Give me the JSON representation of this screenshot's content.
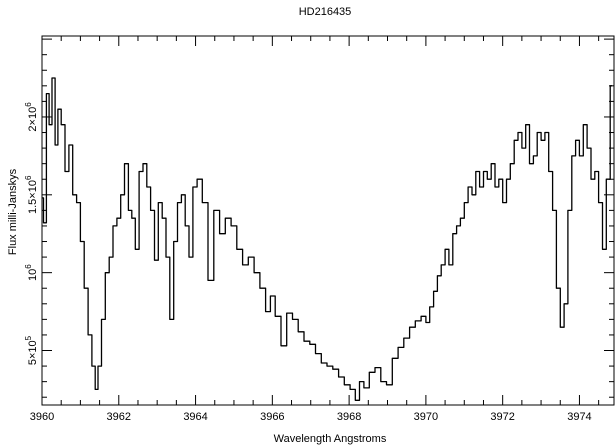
{
  "chart_data": {
    "type": "line",
    "title": "HD216435",
    "xlabel": "Wavelength  Angstroms",
    "ylabel": "Flux  milli-Janskys",
    "xlim": [
      3960,
      3974.9
    ],
    "ylim": [
      150000,
      2520000
    ],
    "grid": false,
    "legend": "none",
    "x_ticks": [
      {
        "value": 3960,
        "label": "3960"
      },
      {
        "value": 3962,
        "label": "3962"
      },
      {
        "value": 3964,
        "label": "3964"
      },
      {
        "value": 3966,
        "label": "3966"
      },
      {
        "value": 3968,
        "label": "3968"
      },
      {
        "value": 3970,
        "label": "3970"
      },
      {
        "value": 3972,
        "label": "3972"
      },
      {
        "value": 3974,
        "label": "3974"
      }
    ],
    "y_ticks": [
      {
        "value": 500000,
        "mantissa": "5×10",
        "exponent": "5"
      },
      {
        "value": 1000000,
        "mantissa": "10",
        "exponent": "6"
      },
      {
        "value": 1500000,
        "mantissa": "1.5×10",
        "exponent": "6"
      },
      {
        "value": 2000000,
        "mantissa": "2×10",
        "exponent": "6"
      }
    ],
    "series": [
      {
        "x": [
          3960.0,
          3960.08,
          3960.15,
          3960.22,
          3960.3,
          3960.38,
          3960.45,
          3960.55,
          3960.65,
          3960.75,
          3960.85,
          3960.95,
          3961.05,
          3961.15,
          3961.25,
          3961.35,
          3961.42,
          3961.5,
          3961.6,
          3961.7,
          3961.8,
          3961.9,
          3962.0,
          3962.1,
          3962.2,
          3962.3,
          3962.38,
          3962.48,
          3962.58,
          3962.68,
          3962.78,
          3962.88,
          3962.98,
          3963.08,
          3963.18,
          3963.28,
          3963.38,
          3963.48,
          3963.58,
          3963.68,
          3963.78,
          3963.88,
          3963.98,
          3964.1,
          3964.25,
          3964.4,
          3964.55,
          3964.7,
          3964.85,
          3965.0,
          3965.15,
          3965.3,
          3965.45,
          3965.6,
          3965.75,
          3965.9,
          3966.0,
          3966.15,
          3966.3,
          3966.45,
          3966.6,
          3966.75,
          3966.9,
          3967.05,
          3967.2,
          3967.35,
          3967.5,
          3967.65,
          3967.8,
          3967.95,
          3968.1,
          3968.22,
          3968.32,
          3968.45,
          3968.6,
          3968.75,
          3968.9,
          3969.05,
          3969.2,
          3969.35,
          3969.5,
          3969.65,
          3969.8,
          3969.95,
          3970.05,
          3970.15,
          3970.25,
          3970.35,
          3970.45,
          3970.55,
          3970.65,
          3970.75,
          3970.85,
          3970.95,
          3971.05,
          3971.15,
          3971.25,
          3971.35,
          3971.45,
          3971.55,
          3971.65,
          3971.75,
          3971.85,
          3971.95,
          3972.05,
          3972.15,
          3972.25,
          3972.35,
          3972.45,
          3972.55,
          3972.65,
          3972.75,
          3972.85,
          3972.95,
          3973.05,
          3973.15,
          3973.25,
          3973.35,
          3973.45,
          3973.55,
          3973.65,
          3973.75,
          3973.85,
          3973.95,
          3974.05,
          3974.15,
          3974.25,
          3974.35,
          3974.45,
          3974.55,
          3974.65,
          3974.75,
          3974.85
        ],
        "y": [
          1480000,
          1320000,
          2150000,
          1950000,
          2250000,
          1820000,
          2050000,
          1950000,
          1650000,
          1820000,
          1500000,
          1450000,
          1200000,
          900000,
          600000,
          400000,
          250000,
          400000,
          700000,
          1000000,
          1100000,
          1300000,
          1350000,
          1500000,
          1700000,
          1400000,
          1350000,
          1150000,
          1650000,
          1700000,
          1550000,
          1400000,
          1080000,
          1450000,
          1350000,
          1100000,
          700000,
          1200000,
          1450000,
          1500000,
          1300000,
          1100000,
          1550000,
          1600000,
          1450000,
          950000,
          1400000,
          1250000,
          1350000,
          1300000,
          1150000,
          1050000,
          1100000,
          1000000,
          900000,
          750000,
          850000,
          720000,
          530000,
          740000,
          700000,
          620000,
          560000,
          540000,
          480000,
          420000,
          400000,
          380000,
          330000,
          280000,
          250000,
          180000,
          300000,
          260000,
          360000,
          390000,
          300000,
          280000,
          450000,
          520000,
          580000,
          650000,
          690000,
          720000,
          680000,
          780000,
          880000,
          980000,
          1050000,
          1150000,
          1050000,
          1250000,
          1300000,
          1350000,
          1450000,
          1550000,
          1500000,
          1650000,
          1550000,
          1650000,
          1600000,
          1700000,
          1550000,
          1600000,
          1450000,
          1600000,
          1700000,
          1850000,
          1900000,
          1800000,
          1950000,
          1700000,
          1750000,
          1900000,
          1850000,
          1900000,
          1650000,
          1400000,
          900000,
          650000,
          800000,
          1400000,
          1750000,
          1850000,
          1750000,
          1950000,
          1800000,
          1600000,
          1650000,
          1450000,
          1150000,
          1600000,
          2200000
        ]
      }
    ]
  }
}
